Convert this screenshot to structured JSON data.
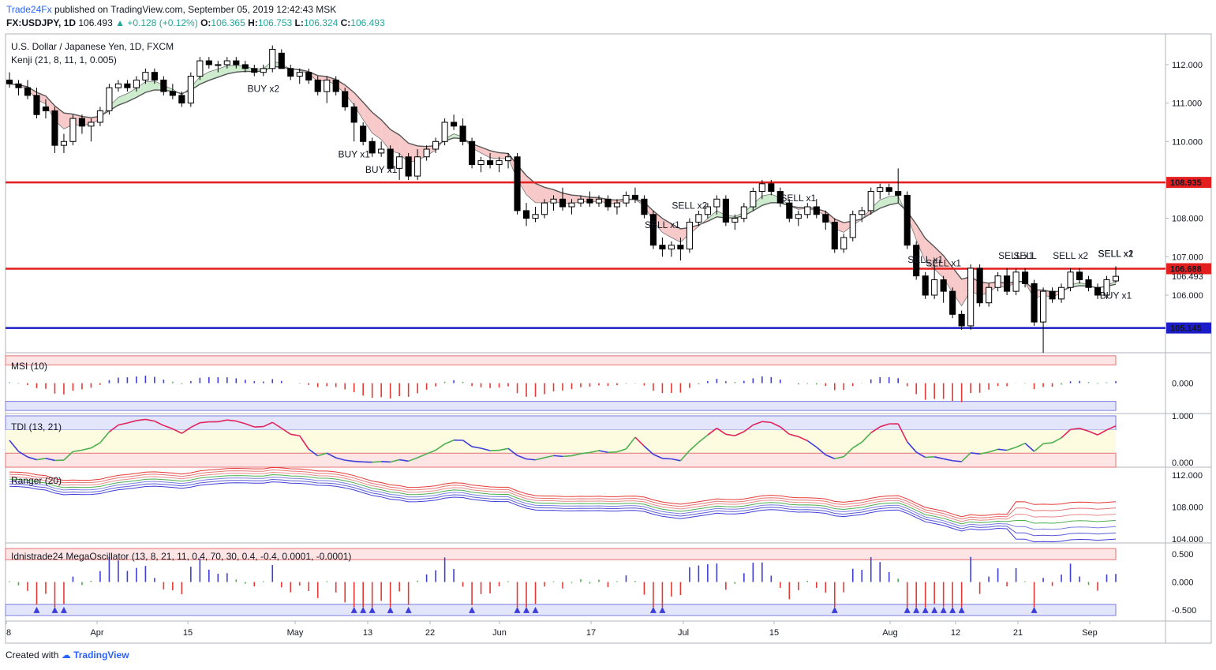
{
  "header": {
    "publisher": "Trade24Fx",
    "published_text": "published on TradingView.com, September 05, 2019 12:42:43 MSK",
    "symbol": "FX:USDJPY, 1D",
    "last": "106.493",
    "change": "▲ +0.128 (+0.12%)",
    "o_label": "O:",
    "o_value": "106.365",
    "h_label": "H:",
    "h_value": "106.753",
    "l_label": "L:",
    "l_value": "106.324",
    "c_label": "C:",
    "c_value": "106.493"
  },
  "footer": {
    "created": "Created with",
    "brand": "TradingView"
  },
  "colors": {
    "red_line": "#e31e1e",
    "blue_line": "#1c1cc8",
    "bull": "#ffffff",
    "bear": "#000000",
    "ribbon_red": "#f8c9c9",
    "ribbon_green": "#cdeccd",
    "ribbon_blue": "#cfd3f5"
  },
  "chart_data": [
    {
      "type": "candlestick",
      "title": "U.S. Dollar / Japanese Yen, 1D, FXCM",
      "indicator": "Kenji (21, 8, 11, 1, 0.005)",
      "y_ticks": [
        "112.000",
        "111.000",
        "110.000",
        "108.000",
        "107.000",
        "106.000"
      ],
      "ylim": [
        104.5,
        112.8
      ],
      "x_ticks": [
        "8",
        "Apr",
        "15",
        "May",
        "13",
        "22",
        "Jun",
        "17",
        "Jul",
        "15",
        "Aug",
        "12",
        "21",
        "Sep"
      ],
      "horizontal_lines": [
        {
          "value": 108.935,
          "label": "108.935",
          "color": "#e31e1e"
        },
        {
          "value": 106.688,
          "label": "106.688",
          "color": "#e31e1e"
        },
        {
          "value": 105.145,
          "label": "105.145",
          "color": "#1c1cc8"
        }
      ],
      "last_price_label": "106.493",
      "signals": [
        {
          "text": "BUY x2",
          "bar": 28
        },
        {
          "text": "BUY x1",
          "bar": 38
        },
        {
          "text": "BUY x1",
          "bar": 41
        },
        {
          "text": "SELL x1",
          "bar": 72
        },
        {
          "text": "SELL x2",
          "bar": 75
        },
        {
          "text": "SELL x1",
          "bar": 87
        },
        {
          "text": "SELL x1",
          "bar": 101
        },
        {
          "text": "SELL x1",
          "bar": 103
        },
        {
          "text": "SELL x1",
          "bar": 111
        },
        {
          "text": "SELL",
          "bar": 112
        },
        {
          "text": "SELL x2",
          "bar": 117
        },
        {
          "text": "SELL x2",
          "bar": 133
        },
        {
          "text": "BUY x1",
          "bar": 144
        },
        {
          "text": "SELL x1",
          "bar": 165
        },
        {
          "text": "SELL x1",
          "bar": 172
        }
      ],
      "candles": [
        [
          111.6,
          111.8,
          111.4,
          111.5
        ],
        [
          111.5,
          111.6,
          111.2,
          111.4
        ],
        [
          111.4,
          111.6,
          111.1,
          111.2
        ],
        [
          111.2,
          111.4,
          110.6,
          110.7
        ],
        [
          110.9,
          111.1,
          110.6,
          110.8
        ],
        [
          110.8,
          110.9,
          109.7,
          109.9
        ],
        [
          109.9,
          110.2,
          109.7,
          110.0
        ],
        [
          110.0,
          110.7,
          109.9,
          110.6
        ],
        [
          110.6,
          110.7,
          110.2,
          110.4
        ],
        [
          110.4,
          110.6,
          110.0,
          110.5
        ],
        [
          110.5,
          110.9,
          110.4,
          110.8
        ],
        [
          110.8,
          111.5,
          110.7,
          111.4
        ],
        [
          111.4,
          111.6,
          111.3,
          111.5
        ],
        [
          111.5,
          111.6,
          111.3,
          111.4
        ],
        [
          111.4,
          111.7,
          111.3,
          111.6
        ],
        [
          111.6,
          111.9,
          111.5,
          111.8
        ],
        [
          111.8,
          111.9,
          111.5,
          111.6
        ],
        [
          111.6,
          111.7,
          111.2,
          111.3
        ],
        [
          111.3,
          111.5,
          111.1,
          111.2
        ],
        [
          111.2,
          111.3,
          110.9,
          111.0
        ],
        [
          111.0,
          111.8,
          110.9,
          111.7
        ],
        [
          111.7,
          112.2,
          111.6,
          112.1
        ],
        [
          112.1,
          112.2,
          111.9,
          112.0
        ],
        [
          112.0,
          112.1,
          111.8,
          112.0
        ],
        [
          112.0,
          112.2,
          111.9,
          112.1
        ],
        [
          112.1,
          112.2,
          111.9,
          112.0
        ],
        [
          112.0,
          112.1,
          111.8,
          111.9
        ],
        [
          111.9,
          112.0,
          111.7,
          111.8
        ],
        [
          111.8,
          112.0,
          111.7,
          111.9
        ],
        [
          111.9,
          112.5,
          111.8,
          112.4
        ],
        [
          112.3,
          112.4,
          111.9,
          111.9
        ],
        [
          111.9,
          112.0,
          111.6,
          111.7
        ],
        [
          111.7,
          111.9,
          111.5,
          111.8
        ],
        [
          111.8,
          111.9,
          111.5,
          111.6
        ],
        [
          111.6,
          111.7,
          111.2,
          111.3
        ],
        [
          111.3,
          111.7,
          111.0,
          111.6
        ],
        [
          111.6,
          111.7,
          111.2,
          111.3
        ],
        [
          111.3,
          111.4,
          110.8,
          110.9
        ],
        [
          110.9,
          111.0,
          110.0,
          110.5
        ],
        [
          110.4,
          110.5,
          109.9,
          110.0
        ],
        [
          110.0,
          110.1,
          109.6,
          109.7
        ],
        [
          109.7,
          110.0,
          109.6,
          109.8
        ],
        [
          109.8,
          109.9,
          109.2,
          109.3
        ],
        [
          109.3,
          109.7,
          109.0,
          109.6
        ],
        [
          109.6,
          109.7,
          109.0,
          109.1
        ],
        [
          109.1,
          109.8,
          109.0,
          109.6
        ],
        [
          109.6,
          109.9,
          109.5,
          109.8
        ],
        [
          109.8,
          110.1,
          109.7,
          110.0
        ],
        [
          110.0,
          110.6,
          109.9,
          110.5
        ],
        [
          110.5,
          110.7,
          110.3,
          110.4
        ],
        [
          110.4,
          110.6,
          109.9,
          110.0
        ],
        [
          110.0,
          110.1,
          109.3,
          109.4
        ],
        [
          109.4,
          109.6,
          109.2,
          109.5
        ],
        [
          109.5,
          109.7,
          109.3,
          109.4
        ],
        [
          109.4,
          109.6,
          109.2,
          109.5
        ],
        [
          109.5,
          109.7,
          109.3,
          109.6
        ],
        [
          109.6,
          109.7,
          108.1,
          108.2
        ],
        [
          108.2,
          108.4,
          107.8,
          108.0
        ],
        [
          108.0,
          108.3,
          107.9,
          108.1
        ],
        [
          108.1,
          108.5,
          108.0,
          108.4
        ],
        [
          108.4,
          108.6,
          108.2,
          108.5
        ],
        [
          108.5,
          108.8,
          108.2,
          108.3
        ],
        [
          108.3,
          108.5,
          108.1,
          108.4
        ],
        [
          108.4,
          108.6,
          108.3,
          108.5
        ],
        [
          108.5,
          108.7,
          108.3,
          108.4
        ],
        [
          108.4,
          108.6,
          108.3,
          108.5
        ],
        [
          108.5,
          108.6,
          108.2,
          108.3
        ],
        [
          108.3,
          108.5,
          108.1,
          108.4
        ],
        [
          108.4,
          108.7,
          108.3,
          108.6
        ],
        [
          108.6,
          108.8,
          108.4,
          108.5
        ],
        [
          108.5,
          108.6,
          108.0,
          108.1
        ],
        [
          108.1,
          108.2,
          107.2,
          107.3
        ],
        [
          107.3,
          107.5,
          107.0,
          107.2
        ],
        [
          107.2,
          107.4,
          107.0,
          107.3
        ],
        [
          107.3,
          107.5,
          106.9,
          107.2
        ],
        [
          107.2,
          108.0,
          107.1,
          107.9
        ],
        [
          107.9,
          108.2,
          107.8,
          108.1
        ],
        [
          108.1,
          108.4,
          108.0,
          108.3
        ],
        [
          108.3,
          108.6,
          108.1,
          108.5
        ],
        [
          108.5,
          108.6,
          107.8,
          107.9
        ],
        [
          107.9,
          108.1,
          107.7,
          108.0
        ],
        [
          108.0,
          108.4,
          107.9,
          108.3
        ],
        [
          108.3,
          108.8,
          108.2,
          108.7
        ],
        [
          108.7,
          109.0,
          108.5,
          108.9
        ],
        [
          108.9,
          109.0,
          108.6,
          108.7
        ],
        [
          108.7,
          108.8,
          108.3,
          108.4
        ],
        [
          108.4,
          108.5,
          107.9,
          108.0
        ],
        [
          108.0,
          108.2,
          107.8,
          108.1
        ],
        [
          108.1,
          108.4,
          108.0,
          108.3
        ],
        [
          108.3,
          108.5,
          108.0,
          108.1
        ],
        [
          108.1,
          108.2,
          107.7,
          107.9
        ],
        [
          107.9,
          108.0,
          107.1,
          107.2
        ],
        [
          107.2,
          107.6,
          107.1,
          107.5
        ],
        [
          107.5,
          108.2,
          107.4,
          108.1
        ],
        [
          108.1,
          108.3,
          107.9,
          108.2
        ],
        [
          108.2,
          108.8,
          108.1,
          108.7
        ],
        [
          108.7,
          108.9,
          108.5,
          108.8
        ],
        [
          108.8,
          108.9,
          108.6,
          108.7
        ],
        [
          108.7,
          109.3,
          108.4,
          108.6
        ],
        [
          108.6,
          108.7,
          107.2,
          107.3
        ],
        [
          107.3,
          107.4,
          106.4,
          106.5
        ],
        [
          106.5,
          106.6,
          105.9,
          106.0
        ],
        [
          106.0,
          106.8,
          105.9,
          106.4
        ],
        [
          106.4,
          106.5,
          105.8,
          106.1
        ],
        [
          106.1,
          106.2,
          105.4,
          105.5
        ],
        [
          105.5,
          105.6,
          105.1,
          105.2
        ],
        [
          105.2,
          106.8,
          105.1,
          106.7
        ],
        [
          106.7,
          106.8,
          105.7,
          105.8
        ],
        [
          105.8,
          106.3,
          105.7,
          106.2
        ],
        [
          106.2,
          106.6,
          106.1,
          106.5
        ],
        [
          106.5,
          106.7,
          106.0,
          106.1
        ],
        [
          106.1,
          106.7,
          106.0,
          106.6
        ],
        [
          106.6,
          106.7,
          106.2,
          106.3
        ],
        [
          106.3,
          106.4,
          105.2,
          105.3
        ],
        [
          105.3,
          106.2,
          104.5,
          106.1
        ],
        [
          106.1,
          106.2,
          105.8,
          105.9
        ],
        [
          105.9,
          106.3,
          105.8,
          106.2
        ],
        [
          106.2,
          106.7,
          106.1,
          106.6
        ],
        [
          106.6,
          106.7,
          106.3,
          106.4
        ],
        [
          106.4,
          106.5,
          106.1,
          106.2
        ],
        [
          106.2,
          106.3,
          105.9,
          106.0
        ],
        [
          106.0,
          106.5,
          105.9,
          106.4
        ],
        [
          106.37,
          106.75,
          106.32,
          106.49
        ]
      ]
    },
    {
      "type": "bar",
      "title": "MSI (10)",
      "y_ticks": [
        "0.000"
      ],
      "ylim": [
        -1,
        1
      ]
    },
    {
      "type": "line",
      "title": "TDI (13, 21)",
      "y_ticks": [
        "1.000",
        "0.000"
      ],
      "ylim": [
        -0.1,
        1.05
      ]
    },
    {
      "type": "line",
      "title": "Ranger (20)",
      "y_ticks": [
        "112.000",
        "108.000",
        "104.000"
      ],
      "ylim": [
        103.5,
        113.0
      ]
    },
    {
      "type": "bar",
      "title": "Idnistrade24 MegaOscillator (13, 8, 21, 11, 0.4, 70, 30, 0.4, -0.4, 0.0001, -0.0001)",
      "y_ticks": [
        "0.500",
        "0.000",
        "-0.500"
      ],
      "ylim": [
        -0.7,
        0.7
      ]
    }
  ]
}
